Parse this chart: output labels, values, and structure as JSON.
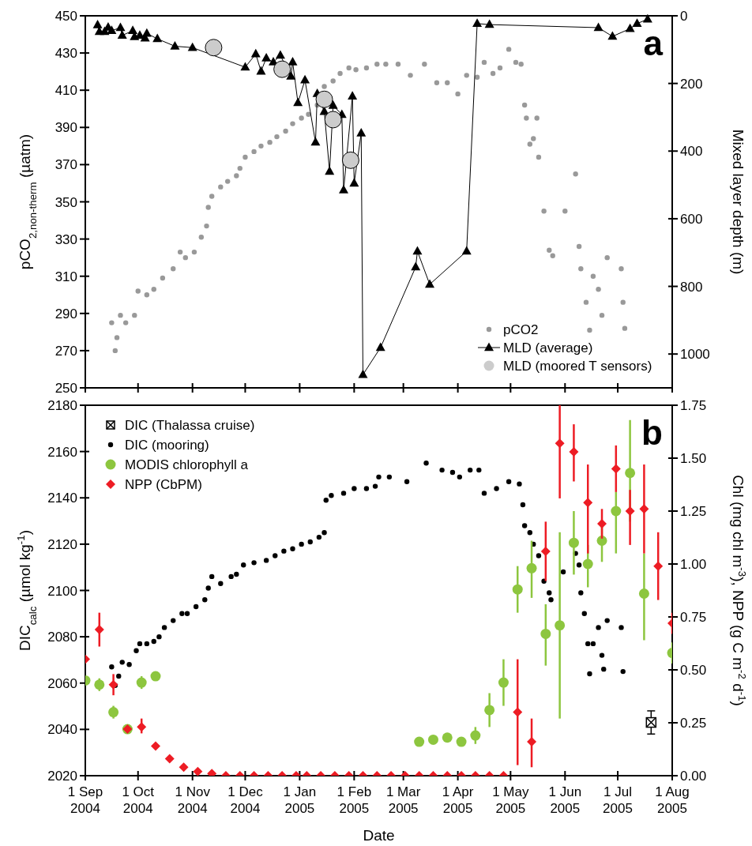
{
  "chart_data": [
    {
      "type": "scatter",
      "xlim": [
        "2004-09-01",
        "2005-08-01"
      ],
      "xticks": [
        {
          "value": "2004-09-01",
          "label": null
        },
        {
          "value": "2004-10-01",
          "label": null
        },
        {
          "value": "2004-11-01",
          "label": null
        },
        {
          "value": "2004-12-01",
          "label": null
        },
        {
          "value": "2005-01-01",
          "label": null
        },
        {
          "value": "2005-02-01",
          "label": null
        },
        {
          "value": "2005-03-01",
          "label": null
        },
        {
          "value": "2005-04-01",
          "label": null
        },
        {
          "value": "2005-05-01",
          "label": null
        },
        {
          "value": "2005-06-01",
          "label": null
        },
        {
          "value": "2005-07-01",
          "label": null
        },
        {
          "value": "2005-08-01",
          "label": null
        }
      ],
      "ylim": [
        250,
        450
      ],
      "yticks": [
        250,
        270,
        290,
        310,
        330,
        350,
        370,
        390,
        410,
        430,
        450
      ],
      "y2lim": [
        1100,
        0
      ],
      "y2ticks": [
        0,
        200,
        400,
        600,
        800,
        1000
      ],
      "ylabel": "pCO$_{2,non-therm}$ (µatm)",
      "y2label": "Mixed layer depth (m)",
      "tick_labels": "y",
      "legend": "bottom right",
      "annotations": [
        "a"
      ],
      "series": [
        {
          "name": "pCO2",
          "marker": "circle",
          "color": "#999999",
          "x": [
            "2004-09-16",
            "2004-09-18",
            "2004-09-19",
            "2004-09-21",
            "2004-09-24",
            "2004-09-29",
            "2004-10-01",
            "2004-10-06",
            "2004-10-10",
            "2004-10-15",
            "2004-10-21",
            "2004-10-25",
            "2004-10-28",
            "2004-11-02",
            "2004-11-06",
            "2004-11-09",
            "2004-11-10",
            "2004-11-12",
            "2004-11-17",
            "2004-11-21",
            "2004-11-26",
            "2004-11-28",
            "2004-12-01",
            "2004-12-06",
            "2004-12-10",
            "2004-12-15",
            "2004-12-19",
            "2004-12-24",
            "2004-12-28",
            "2005-01-02",
            "2005-01-06",
            "2005-01-11",
            "2005-01-15",
            "2005-01-20",
            "2005-01-24",
            "2005-01-29",
            "2005-02-02",
            "2005-02-08",
            "2005-02-14",
            "2005-02-19",
            "2005-02-26",
            "2005-03-05",
            "2005-03-13",
            "2005-03-20",
            "2005-03-26",
            "2005-04-01",
            "2005-04-06",
            "2005-04-12",
            "2005-04-16",
            "2005-04-21",
            "2005-04-25",
            "2005-04-30",
            "2005-05-04",
            "2005-05-07",
            "2005-05-09",
            "2005-05-10",
            "2005-05-12",
            "2005-05-14",
            "2005-05-16",
            "2005-05-17",
            "2005-05-20",
            "2005-05-23",
            "2005-05-25",
            "2005-06-01",
            "2005-06-07",
            "2005-06-09",
            "2005-06-10",
            "2005-06-13",
            "2005-06-15",
            "2005-06-17",
            "2005-06-20",
            "2005-06-22",
            "2005-06-25",
            "2005-07-03",
            "2005-07-04",
            "2005-07-05"
          ],
          "values": [
            285,
            270,
            277,
            289,
            285,
            289,
            302,
            300,
            303,
            309,
            314,
            323,
            320,
            323,
            331,
            337,
            347,
            353,
            358,
            361,
            364,
            368,
            374,
            377,
            380,
            382,
            385,
            388,
            392,
            395,
            397,
            402,
            412,
            415,
            419,
            422,
            421,
            422,
            424,
            424,
            424,
            418,
            424,
            414,
            414,
            408,
            418,
            417,
            425,
            419,
            422,
            432,
            425,
            424,
            402,
            395,
            381,
            384,
            395,
            374,
            345,
            324,
            321,
            345,
            365,
            326,
            314,
            296,
            281,
            310,
            303,
            289,
            320,
            314,
            296,
            282
          ]
        },
        {
          "name": "MLD (average)",
          "type": "line",
          "marker": "triangle",
          "line_style": "solid",
          "axis": "y2",
          "color": "#000000",
          "x": [
            "2004-09-08",
            "2004-09-09",
            "2004-09-12",
            "2004-09-14",
            "2004-09-16",
            "2004-09-21",
            "2004-09-22",
            "2004-09-28",
            "2004-09-29",
            "2004-10-02",
            "2004-10-05",
            "2004-10-06",
            "2004-10-12",
            "2004-10-22",
            "2004-11-01",
            "2004-12-01",
            "2004-12-07",
            "2004-12-10",
            "2004-12-13",
            "2004-12-17",
            "2004-12-21",
            "2004-12-27",
            "2004-12-28",
            "2004-12-31",
            "2005-01-04",
            "2005-01-10",
            "2005-01-11",
            "2005-01-15",
            "2005-01-18",
            "2005-01-20",
            "2005-01-25",
            "2005-01-26",
            "2005-01-31",
            "2005-02-01",
            "2005-02-05",
            "2005-02-06",
            "2005-02-16",
            "2005-03-08",
            "2005-03-09",
            "2005-03-16",
            "2005-04-06",
            "2005-04-12",
            "2005-04-19",
            "2005-06-20",
            "2005-06-28",
            "2005-07-08",
            "2005-07-12",
            "2005-07-18"
          ],
          "values": [
            27,
            47,
            47,
            34,
            44,
            35,
            58,
            44,
            62,
            58,
            66,
            52,
            68,
            90,
            94,
            152,
            113,
            164,
            125,
            137,
            117,
            179,
            137,
            257,
            190,
            374,
            230,
            283,
            460,
            265,
            292,
            515,
            238,
            495,
            347,
            1061,
            981,
            743,
            696,
            794,
            696,
            23,
            26,
            35,
            61,
            38,
            23,
            10
          ]
        },
        {
          "name": "MLD (moored T sensors)",
          "marker": "circle",
          "axis": "y2",
          "color": "#cccccc",
          "x": [
            "2004-11-13",
            "2004-12-22",
            "2005-01-15",
            "2005-01-20",
            "2005-01-30"
          ],
          "values": [
            94,
            158,
            247,
            307,
            427
          ]
        }
      ]
    },
    {
      "type": "scatter",
      "xlim": [
        "2004-09-01",
        "2005-08-01"
      ],
      "xticks": [
        {
          "value": "2004-09-01",
          "label": "1 Sep 2004"
        },
        {
          "value": "2004-10-01",
          "label": "1 Oct 2004"
        },
        {
          "value": "2004-11-01",
          "label": "1 Nov 2004"
        },
        {
          "value": "2004-12-01",
          "label": "1 Dec 2004"
        },
        {
          "value": "2005-01-01",
          "label": "1 Jan 2005"
        },
        {
          "value": "2005-02-01",
          "label": "1 Feb 2005"
        },
        {
          "value": "2005-03-01",
          "label": "1 Mar 2005"
        },
        {
          "value": "2005-04-01",
          "label": "1 Apr 2005"
        },
        {
          "value": "2005-05-01",
          "label": "1 May 2005"
        },
        {
          "value": "2005-06-01",
          "label": "1 Jun 2005"
        },
        {
          "value": "2005-07-01",
          "label": "1 Jul 2005"
        },
        {
          "value": "2005-08-01",
          "label": "1 Aug 2005"
        }
      ],
      "ylim": [
        2020,
        2180
      ],
      "yticks": [
        2020,
        2040,
        2060,
        2080,
        2100,
        2120,
        2140,
        2160,
        2180
      ],
      "y2lim": [
        0,
        1.75
      ],
      "y2ticks": [
        {
          "value": 0,
          "label": "0.00"
        },
        {
          "value": 0.25,
          "label": "0.25"
        },
        {
          "value": 0.5,
          "label": "0.50"
        },
        {
          "value": 0.75,
          "label": "0.75"
        },
        {
          "value": 1,
          "label": "1.00"
        },
        {
          "value": 1.25,
          "label": "1.25"
        },
        {
          "value": 1.5,
          "label": "1.50"
        },
        {
          "value": 1.75,
          "label": "1.75"
        }
      ],
      "xlabel": "Date",
      "ylabel": "DIC$_{calc}$ (µmol kg$^{-1}$)",
      "y2label": "Chl (mg chl m$^{-3}$), NPP (g C m$^{-2}$ d$^{-1}$)",
      "legend": "top left",
      "annotations": [
        "b"
      ],
      "series": [
        {
          "name": "DIC (Thalassa cruise)",
          "marker": "square",
          "color": "#000000",
          "x": [
            "2005-07-20"
          ],
          "values": [
            2043
          ],
          "errors": [
            5
          ]
        },
        {
          "name": "DIC (mooring)",
          "marker": "circle",
          "color": "#000000",
          "x": [
            "2004-09-16",
            "2004-09-18",
            "2004-09-20",
            "2004-09-22",
            "2004-09-26",
            "2004-09-30",
            "2004-10-02",
            "2004-10-06",
            "2004-10-10",
            "2004-10-13",
            "2004-10-16",
            "2004-10-21",
            "2004-10-26",
            "2004-10-29",
            "2004-11-03",
            "2004-11-08",
            "2004-11-10",
            "2004-11-12",
            "2004-11-17",
            "2004-11-23",
            "2004-11-26",
            "2004-11-30",
            "2004-12-06",
            "2004-12-13",
            "2004-12-18",
            "2004-12-23",
            "2004-12-28",
            "2005-01-02",
            "2005-01-07",
            "2005-01-12",
            "2005-01-15",
            "2005-01-16",
            "2005-01-19",
            "2005-01-26",
            "2005-02-01",
            "2005-02-08",
            "2005-02-13",
            "2005-02-15",
            "2005-02-21",
            "2005-03-03",
            "2005-03-14",
            "2005-03-23",
            "2005-03-29",
            "2005-04-02",
            "2005-04-08",
            "2005-04-13",
            "2005-04-16",
            "2005-04-23",
            "2005-04-30",
            "2005-05-06",
            "2005-05-08",
            "2005-05-09",
            "2005-05-12",
            "2005-05-14",
            "2005-05-17",
            "2005-05-20",
            "2005-05-23",
            "2005-05-24",
            "2005-05-31",
            "2005-06-07",
            "2005-06-09",
            "2005-06-10",
            "2005-06-12",
            "2005-06-14",
            "2005-06-15",
            "2005-06-17",
            "2005-06-20",
            "2005-06-22",
            "2005-06-23",
            "2005-06-25",
            "2005-07-03",
            "2005-07-04"
          ],
          "values": [
            2067,
            2059,
            2063,
            2069,
            2068,
            2074,
            2077,
            2077,
            2078,
            2080,
            2084,
            2087,
            2090,
            2090,
            2093,
            2096,
            2101,
            2106,
            2103,
            2106,
            2107,
            2111,
            2112,
            2113,
            2115,
            2117,
            2118,
            2120,
            2121,
            2123,
            2125,
            2139,
            2141,
            2142,
            2144,
            2144,
            2145,
            2149,
            2149,
            2147,
            2155,
            2152,
            2151,
            2149,
            2152,
            2152,
            2142,
            2144,
            2147,
            2146,
            2137,
            2128,
            2125,
            2120,
            2115,
            2104,
            2099,
            2096,
            2108,
            2116,
            2111,
            2099,
            2090,
            2077,
            2064,
            2077,
            2084,
            2072,
            2066,
            2087,
            2084,
            2065
          ]
        },
        {
          "name": "MODIS chlorophyll a",
          "marker": "circle",
          "axis": "y2",
          "color": "#8dc63f",
          "x": [
            "2004-09-01",
            "2004-09-09",
            "2004-09-17",
            "2004-09-25",
            "2004-10-03",
            "2004-10-11",
            "2005-03-10",
            "2005-03-18",
            "2005-03-26",
            "2005-04-03",
            "2005-04-11",
            "2005-04-19",
            "2005-04-27",
            "2005-05-05",
            "2005-05-13",
            "2005-05-21",
            "2005-05-29",
            "2005-06-06",
            "2005-06-14",
            "2005-06-22",
            "2005-06-30",
            "2005-07-08",
            "2005-07-16",
            "2005-08-01"
          ],
          "values": [
            0.45,
            0.43,
            0.3,
            0.22,
            0.44,
            0.47,
            0.16,
            0.17,
            0.18,
            0.16,
            0.19,
            0.31,
            0.44,
            0.88,
            0.98,
            0.67,
            0.71,
            1.1,
            1.0,
            1.11,
            1.25,
            1.43,
            0.86,
            0.58
          ],
          "errors": [
            null,
            0.03,
            0.03,
            null,
            0.03,
            null,
            null,
            null,
            null,
            null,
            0.04,
            [
              0.23,
              0.39
            ],
            [
              0.33,
              0.55
            ],
            [
              0.77,
              0.99
            ],
            [
              0.84,
              1.11
            ],
            [
              0.52,
              0.81
            ],
            [
              0.27,
              1.15
            ],
            [
              0.95,
              1.25
            ],
            [
              0.89,
              1.09
            ],
            [
              1.01,
              1.19
            ],
            [
              1.05,
              1.34
            ],
            [
              1.2,
              1.68
            ],
            [
              0.64,
              1.05
            ],
            [
              0.53,
              0.63
            ]
          ]
        },
        {
          "name": "NPP (CbPM)",
          "marker": "diamond",
          "axis": "y2",
          "color": "#ed1c24",
          "x": [
            "2004-09-01",
            "2004-09-09",
            "2004-09-17",
            "2004-09-25",
            "2004-10-03",
            "2004-10-11",
            "2004-10-19",
            "2004-10-27",
            "2004-11-04",
            "2004-11-12",
            "2004-11-20",
            "2004-11-28",
            "2004-12-06",
            "2004-12-14",
            "2004-12-22",
            "2004-12-30",
            "2005-01-05",
            "2005-01-13",
            "2005-01-21",
            "2005-01-29",
            "2005-02-06",
            "2005-02-14",
            "2005-02-22",
            "2005-03-02",
            "2005-03-10",
            "2005-03-18",
            "2005-03-26",
            "2005-04-03",
            "2005-04-11",
            "2005-04-19",
            "2005-04-27",
            "2005-05-05",
            "2005-05-13",
            "2005-05-21",
            "2005-05-29",
            "2005-06-06",
            "2005-06-14",
            "2005-06-22",
            "2005-06-30",
            "2005-07-08",
            "2005-07-16",
            "2005-07-24",
            "2005-08-01"
          ],
          "values": [
            0.55,
            0.69,
            0.43,
            0.22,
            0.23,
            0.14,
            0.08,
            0.04,
            0.02,
            0.01,
            0,
            0,
            0,
            0,
            0,
            0,
            0,
            0,
            0,
            0,
            0,
            0,
            0,
            0,
            0,
            0,
            0,
            0,
            0,
            0,
            0,
            0.3,
            0.16,
            1.06,
            1.57,
            1.53,
            1.29,
            1.19,
            1.45,
            1.25,
            1.26,
            0.99,
            0.72
          ],
          "errors": [
            null,
            [
              0.61,
              0.77
            ],
            [
              0.38,
              0.48
            ],
            null,
            [
              0.2,
              0.27
            ],
            null,
            null,
            null,
            null,
            null,
            null,
            null,
            null,
            null,
            null,
            null,
            null,
            null,
            null,
            null,
            null,
            null,
            null,
            null,
            null,
            null,
            null,
            null,
            null,
            null,
            null,
            [
              0.05,
              0.55
            ],
            [
              0.04,
              0.27
            ],
            [
              0.92,
              1.2
            ],
            [
              1.31,
              1.75
            ],
            [
              1.39,
              1.66
            ],
            [
              1.05,
              1.47
            ],
            [
              1.12,
              1.26
            ],
            [
              1.34,
              1.56
            ],
            [
              1.09,
              1.35
            ],
            [
              1.05,
              1.47
            ],
            [
              0.83,
              1.15
            ],
            [
              0.67,
              0.77
            ]
          ]
        }
      ]
    }
  ]
}
